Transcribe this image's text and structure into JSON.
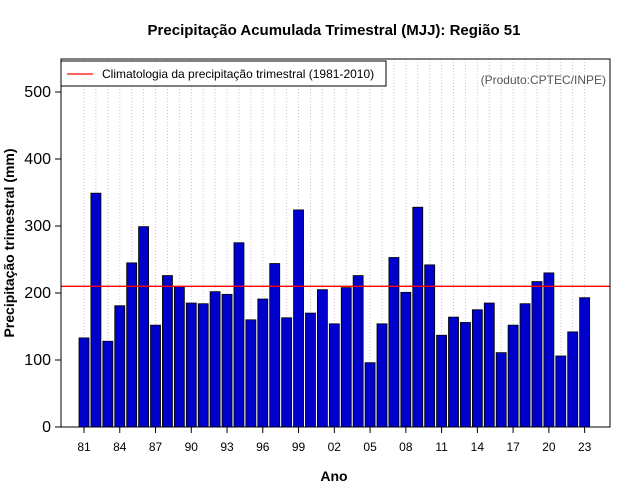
{
  "chart_data": {
    "type": "bar",
    "title": "Precipitação Acumulada Trimestral (MJJ): Região 51",
    "xlabel": "Ano",
    "ylabel": "Precipitação trimestral (mm)",
    "ylim": [
      0,
      550
    ],
    "yticks": [
      0,
      100,
      200,
      300,
      400,
      500
    ],
    "categories": [
      "1981",
      "1982",
      "1983",
      "1984",
      "1985",
      "1986",
      "1987",
      "1988",
      "1989",
      "1990",
      "1991",
      "1992",
      "1993",
      "1994",
      "1995",
      "1996",
      "1997",
      "1998",
      "1999",
      "2000",
      "2001",
      "2002",
      "2003",
      "2004",
      "2005",
      "2006",
      "2007",
      "2008",
      "2009",
      "2010",
      "2011",
      "2012",
      "2013",
      "2014",
      "2015",
      "2016",
      "2017",
      "2018",
      "2019",
      "2020",
      "2021",
      "2022",
      "2023"
    ],
    "xtick_labels": [
      {
        "index": 0,
        "label": "81"
      },
      {
        "index": 3,
        "label": "84"
      },
      {
        "index": 6,
        "label": "87"
      },
      {
        "index": 9,
        "label": "90"
      },
      {
        "index": 12,
        "label": "93"
      },
      {
        "index": 15,
        "label": "96"
      },
      {
        "index": 18,
        "label": "99"
      },
      {
        "index": 21,
        "label": "02"
      },
      {
        "index": 24,
        "label": "05"
      },
      {
        "index": 27,
        "label": "08"
      },
      {
        "index": 30,
        "label": "11"
      },
      {
        "index": 33,
        "label": "14"
      },
      {
        "index": 36,
        "label": "17"
      },
      {
        "index": 39,
        "label": "20"
      },
      {
        "index": 42,
        "label": "23"
      }
    ],
    "values": [
      133,
      349,
      128,
      181,
      245,
      299,
      152,
      226,
      210,
      185,
      184,
      202,
      198,
      275,
      160,
      191,
      244,
      163,
      324,
      170,
      205,
      154,
      208,
      226,
      96,
      154,
      253,
      201,
      328,
      242,
      137,
      164,
      156,
      175,
      185,
      111,
      152,
      184,
      217,
      230,
      106,
      142,
      193
    ],
    "climatology": {
      "value": 210,
      "label": "Climatologia da precipitação trimestral (1981-2010)"
    },
    "legend_position": "top-left",
    "grid": "vertical dotted",
    "credit": "(Produto:CPTEC/INPE)",
    "bar_color": "#0000cc",
    "climatology_color": "#ff0000"
  }
}
